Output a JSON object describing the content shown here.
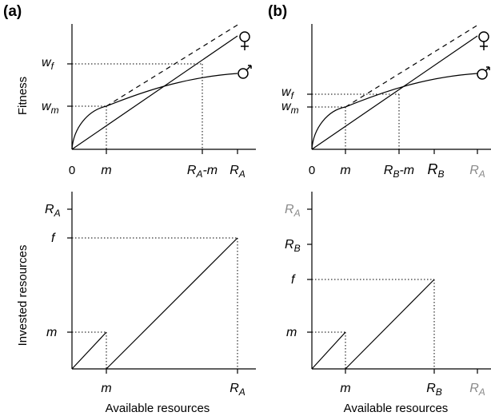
{
  "panels": {
    "a": {
      "label": "(a)"
    },
    "b": {
      "label": "(b)"
    }
  },
  "axes": {
    "fitness": "Fitness",
    "invested": "Invested resources",
    "available": "Available resources"
  },
  "ticks": {
    "zero": "0",
    "m": "m",
    "RA_minus_m_main": "R",
    "RA_minus_m_sub": "A",
    "RA_minus_m_tail": "-m",
    "RA_main": "R",
    "RA_sub": "A",
    "RB_minus_m_main": "R",
    "RB_minus_m_sub": "B",
    "RB_minus_m_tail": "-m",
    "RB_main": "R",
    "RB_sub": "B",
    "w_main": "w",
    "wf_sub": "f",
    "wm_sub": "m",
    "f": "f"
  }
}
